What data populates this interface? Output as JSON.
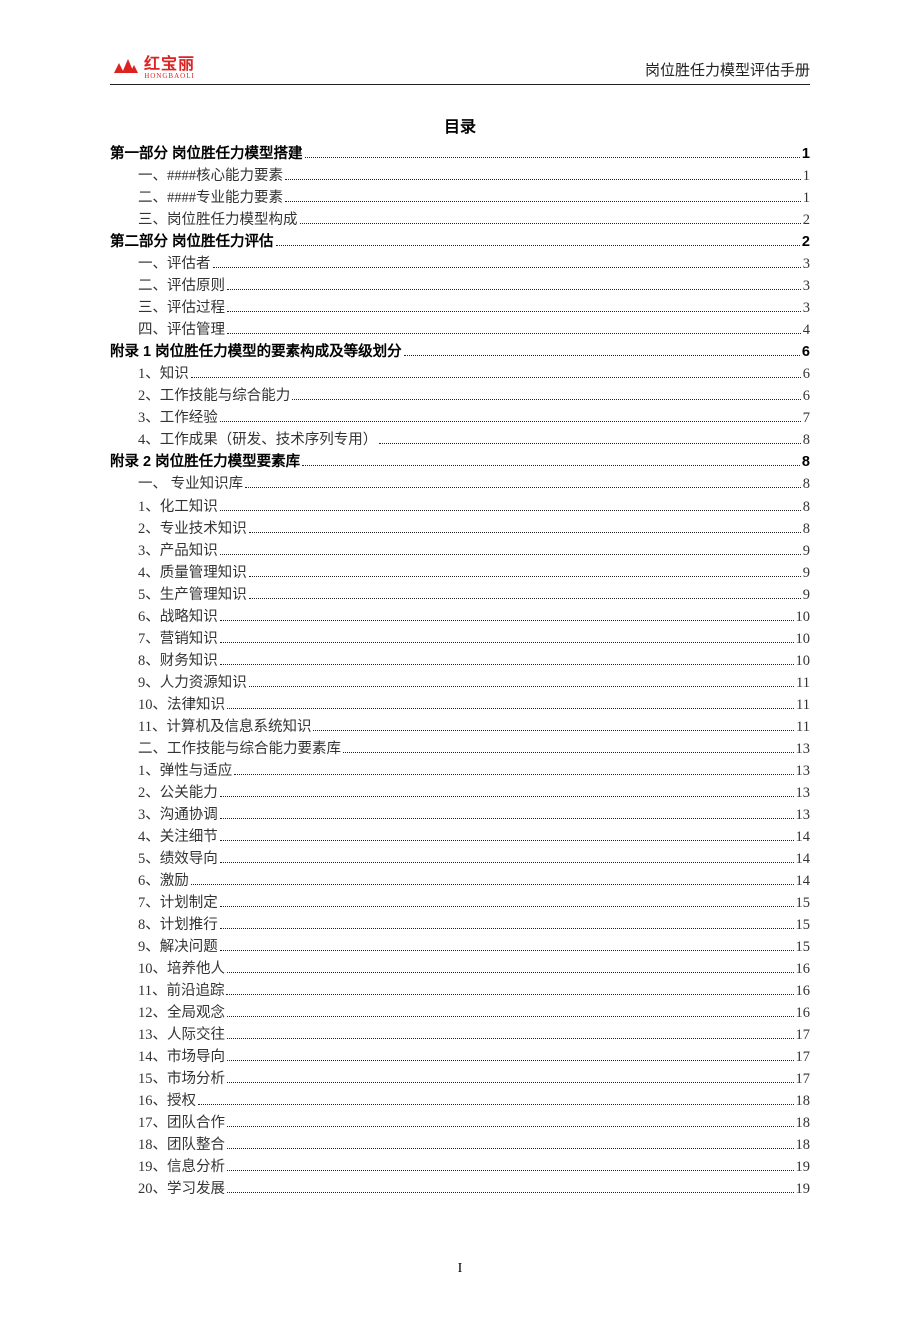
{
  "header": {
    "logo_cn": "红宝丽",
    "logo_en": "HONGBAOLI",
    "doc_title": "岗位胜任力模型评估手册"
  },
  "toc_title": "目录",
  "page_number": "I",
  "toc": [
    {
      "level": 0,
      "label": "第一部分 岗位胜任力模型搭建",
      "page": "1"
    },
    {
      "level": 1,
      "label": "一、####核心能力要素",
      "page": "1"
    },
    {
      "level": 1,
      "label": "二、####专业能力要素",
      "page": "1"
    },
    {
      "level": 1,
      "label": "三、岗位胜任力模型构成",
      "page": "2"
    },
    {
      "level": 0,
      "label": "第二部分 岗位胜任力评估",
      "page": "2"
    },
    {
      "level": 1,
      "label": "一、评估者",
      "page": "3"
    },
    {
      "level": 1,
      "label": "二、评估原则",
      "page": "3"
    },
    {
      "level": 1,
      "label": "三、评估过程",
      "page": "3"
    },
    {
      "level": 1,
      "label": "四、评估管理",
      "page": "4"
    },
    {
      "level": 0,
      "label": "附录 1 岗位胜任力模型的要素构成及等级划分",
      "page": "6"
    },
    {
      "level": 1,
      "label": "1、知识",
      "page": "6"
    },
    {
      "level": 1,
      "label": "2、工作技能与综合能力",
      "page": "6"
    },
    {
      "level": 1,
      "label": "3、工作经验",
      "page": "7"
    },
    {
      "level": 1,
      "label": "4、工作成果（研发、技术序列专用）",
      "page": "8"
    },
    {
      "level": 0,
      "label": "附录 2   岗位胜任力模型要素库",
      "page": "8"
    },
    {
      "level": 1,
      "label": "一、 专业知识库",
      "page": "8"
    },
    {
      "level": 1,
      "label": "1、化工知识",
      "page": "8"
    },
    {
      "level": 1,
      "label": "2、专业技术知识",
      "page": "8"
    },
    {
      "level": 1,
      "label": "3、产品知识",
      "page": "9"
    },
    {
      "level": 1,
      "label": "4、质量管理知识",
      "page": "9"
    },
    {
      "level": 1,
      "label": "5、生产管理知识",
      "page": "9"
    },
    {
      "level": 1,
      "label": "6、战略知识",
      "page": "10"
    },
    {
      "level": 1,
      "label": "7、营销知识",
      "page": "10"
    },
    {
      "level": 1,
      "label": "8、财务知识",
      "page": "10"
    },
    {
      "level": 1,
      "label": "9、人力资源知识",
      "page": "11"
    },
    {
      "level": 1,
      "label": "10、法律知识",
      "page": "11"
    },
    {
      "level": 1,
      "label": "11、计算机及信息系统知识",
      "page": "11"
    },
    {
      "level": 1,
      "label": "二、工作技能与综合能力要素库",
      "page": "13"
    },
    {
      "level": 1,
      "label": "1、弹性与适应",
      "page": "13"
    },
    {
      "level": 1,
      "label": "2、公关能力",
      "page": "13"
    },
    {
      "level": 1,
      "label": "3、沟通协调",
      "page": "13"
    },
    {
      "level": 1,
      "label": "4、关注细节",
      "page": "14"
    },
    {
      "level": 1,
      "label": "5、绩效导向",
      "page": "14"
    },
    {
      "level": 1,
      "label": "6、激励",
      "page": "14"
    },
    {
      "level": 1,
      "label": "7、计划制定",
      "page": "15"
    },
    {
      "level": 1,
      "label": "8、计划推行",
      "page": "15"
    },
    {
      "level": 1,
      "label": "9、解决问题",
      "page": "15"
    },
    {
      "level": 1,
      "label": "10、培养他人",
      "page": "16"
    },
    {
      "level": 1,
      "label": "11、前沿追踪",
      "page": "16"
    },
    {
      "level": 1,
      "label": "12、全局观念",
      "page": "16"
    },
    {
      "level": 1,
      "label": "13、人际交往",
      "page": "17"
    },
    {
      "level": 1,
      "label": "14、市场导向",
      "page": "17"
    },
    {
      "level": 1,
      "label": "15、市场分析",
      "page": "17"
    },
    {
      "level": 1,
      "label": "16、授权",
      "page": "18"
    },
    {
      "level": 1,
      "label": "17、团队合作",
      "page": "18"
    },
    {
      "level": 1,
      "label": "18、团队整合",
      "page": "18"
    },
    {
      "level": 1,
      "label": "19、信息分析",
      "page": "19"
    },
    {
      "level": 1,
      "label": "20、学习发展",
      "page": "19"
    }
  ]
}
